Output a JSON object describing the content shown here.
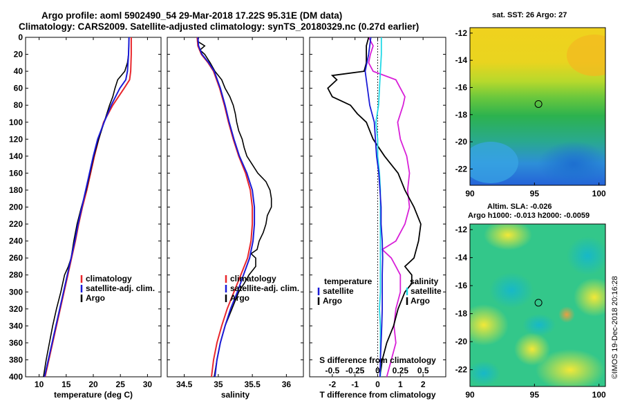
{
  "header": {
    "title_line1": "Argo profile: aoml 5902490_54 29-Mar-2018 17.22S 95.31E (DM data)",
    "title_line2": "Climatology: CARS2009. Satellite-adjusted climatology: synTS_20180329.nc (0.27d earlier)"
  },
  "colors": {
    "climatology": "#e8262c",
    "satellite": "#1a1ad6",
    "argo": "#000000",
    "salinity_diff": "#d81fd8",
    "salinity_sat": "#1fd8e6"
  },
  "chart_data": [
    {
      "type": "line",
      "name": "temperature",
      "xlabel": "temperature (deg C)",
      "ylim": [
        400,
        0
      ],
      "xlim": [
        7.5,
        32.5
      ],
      "xticks": [
        "10",
        "15",
        "20",
        "25",
        "30"
      ],
      "yticks": [
        "0",
        "20",
        "40",
        "60",
        "80",
        "100",
        "120",
        "140",
        "160",
        "180",
        "200",
        "220",
        "240",
        "260",
        "280",
        "300",
        "320",
        "340",
        "360",
        "380",
        "400"
      ],
      "legend": [
        "climatology",
        "satellite-adj. clim.",
        "Argo"
      ],
      "series": [
        {
          "name": "climatology",
          "depth": [
            0,
            20,
            40,
            50,
            60,
            80,
            100,
            120,
            140,
            160,
            180,
            200,
            220,
            240,
            260,
            280,
            300,
            320,
            340,
            360,
            380,
            400
          ],
          "values": [
            27.0,
            27.0,
            26.9,
            26.7,
            25.7,
            23.6,
            21.9,
            21.0,
            20.2,
            19.5,
            18.8,
            18.0,
            17.3,
            16.7,
            16.0,
            15.3,
            14.6,
            13.9,
            13.2,
            12.5,
            11.8,
            11.1
          ]
        },
        {
          "name": "satellite-adj. clim.",
          "depth": [
            0,
            20,
            40,
            50,
            60,
            80,
            100,
            120,
            140,
            160,
            180,
            200,
            220,
            240,
            260,
            280,
            300,
            320,
            340,
            360,
            380,
            400
          ],
          "values": [
            26.6,
            26.5,
            26.3,
            26.0,
            24.9,
            23.3,
            22.0,
            20.8,
            20.0,
            19.3,
            18.6,
            17.9,
            17.2,
            16.6,
            15.9,
            15.2,
            14.5,
            13.8,
            13.1,
            12.4,
            11.7,
            11.0
          ]
        },
        {
          "name": "Argo",
          "depth": [
            0,
            20,
            30,
            40,
            50,
            60,
            70,
            80,
            100,
            120,
            140,
            160,
            180,
            200,
            220,
            240,
            260,
            270,
            280,
            300,
            320,
            340,
            360,
            380,
            400
          ],
          "values": [
            26.6,
            26.5,
            26.3,
            25.8,
            24.5,
            24.0,
            23.6,
            23.0,
            22.0,
            21.0,
            20.1,
            19.4,
            18.7,
            17.8,
            17.0,
            16.4,
            15.9,
            15.4,
            14.7,
            14.0,
            13.2,
            12.5,
            11.9,
            11.3,
            10.8
          ]
        }
      ]
    },
    {
      "type": "line",
      "name": "salinity",
      "xlabel": "salinity",
      "ylim": [
        400,
        0
      ],
      "xlim": [
        34.25,
        36.25
      ],
      "xticks": [
        "34.5",
        "35",
        "35.5",
        "36"
      ],
      "legend": [
        "climatology",
        "satellite-adj. clim.",
        "Argo"
      ],
      "series": [
        {
          "name": "climatology",
          "depth": [
            0,
            10,
            20,
            30,
            40,
            60,
            80,
            100,
            120,
            140,
            160,
            180,
            200,
            220,
            240,
            260,
            280,
            300,
            320,
            340,
            360,
            380,
            400
          ],
          "values": [
            34.69,
            34.7,
            34.75,
            34.85,
            34.93,
            35.02,
            35.09,
            35.15,
            35.22,
            35.3,
            35.4,
            35.47,
            35.5,
            35.5,
            35.48,
            35.43,
            35.33,
            35.23,
            35.13,
            35.05,
            34.98,
            34.93,
            34.9
          ]
        },
        {
          "name": "satellite-adj. clim.",
          "depth": [
            0,
            10,
            20,
            30,
            40,
            60,
            80,
            100,
            120,
            140,
            160,
            180,
            200,
            220,
            240,
            260,
            280,
            300,
            320,
            340,
            360,
            380,
            400
          ],
          "values": [
            34.7,
            34.71,
            34.76,
            34.86,
            34.94,
            35.03,
            35.1,
            35.16,
            35.23,
            35.31,
            35.42,
            35.5,
            35.53,
            35.53,
            35.51,
            35.46,
            35.37,
            35.28,
            35.18,
            35.1,
            35.03,
            34.98,
            34.95
          ]
        },
        {
          "name": "Argo",
          "depth": [
            0,
            5,
            10,
            15,
            20,
            30,
            40,
            50,
            60,
            70,
            80,
            90,
            100,
            110,
            120,
            130,
            140,
            150,
            160,
            170,
            180,
            190,
            200,
            210,
            220,
            230,
            240,
            250,
            255,
            260,
            270,
            280,
            290,
            300,
            320,
            340,
            360,
            380,
            400
          ],
          "values": [
            34.71,
            34.7,
            34.8,
            34.73,
            34.8,
            34.88,
            34.95,
            35.05,
            35.1,
            35.17,
            35.22,
            35.25,
            35.27,
            35.3,
            35.35,
            35.38,
            35.42,
            35.5,
            35.58,
            35.7,
            35.76,
            35.78,
            35.78,
            35.72,
            35.7,
            35.66,
            35.6,
            35.57,
            35.48,
            35.55,
            35.55,
            35.45,
            35.38,
            35.3,
            35.2,
            35.1,
            35.03,
            34.98,
            34.94
          ]
        }
      ]
    },
    {
      "type": "line",
      "name": "difference",
      "xlabel": "T difference from climatology",
      "xlabel_top": "S difference from climatology",
      "ylim": [
        400,
        0
      ],
      "xlim": [
        -3,
        3
      ],
      "xticks": [
        "-2",
        "-1",
        "0",
        "1",
        "2"
      ],
      "xticks_top": [
        "-0.5",
        "-0.25",
        "0",
        "0.25",
        "0.5"
      ],
      "legend_temperature_title": "temperature",
      "legend_salinity_title": "salinity",
      "legend": [
        "satellite",
        "Argo"
      ],
      "series": [
        {
          "name": "T satellite",
          "depth": [
            0,
            20,
            40,
            60,
            80,
            100,
            120,
            140,
            160,
            180,
            200,
            220,
            240,
            260,
            280,
            300,
            320,
            340,
            360,
            380,
            400
          ],
          "values": [
            -0.3,
            -0.4,
            -0.55,
            -0.45,
            -0.35,
            -0.15,
            -0.1,
            -0.05,
            0.05,
            0.1,
            0.15,
            0.15,
            0.2,
            0.22,
            0.2,
            0.2,
            0.2,
            0.18,
            0.15,
            0.12,
            0.1
          ]
        },
        {
          "name": "T Argo",
          "depth": [
            0,
            10,
            20,
            30,
            40,
            45,
            50,
            60,
            70,
            75,
            80,
            90,
            100,
            120,
            140,
            160,
            180,
            200,
            220,
            240,
            260,
            270,
            280,
            290,
            300,
            320,
            340,
            360,
            380,
            400
          ],
          "values": [
            -0.4,
            -0.5,
            -0.5,
            -0.5,
            -0.6,
            -2.0,
            -1.8,
            -2.2,
            -2.0,
            -1.6,
            -1.2,
            -0.9,
            -0.5,
            -0.2,
            0.3,
            0.9,
            1.2,
            1.6,
            1.9,
            1.8,
            1.6,
            1.2,
            1.5,
            1.5,
            1.2,
            0.9,
            0.7,
            0.4,
            0.2,
            0.1
          ]
        },
        {
          "name": "S satellite",
          "depth": [
            0,
            20,
            40,
            60,
            80,
            100,
            120,
            140,
            160,
            180,
            200,
            220,
            240,
            260,
            280,
            300,
            320,
            340,
            360,
            380,
            400
          ],
          "values": [
            0.04,
            0.04,
            0.03,
            0.02,
            0.01,
            -0.02,
            0.0,
            0.0,
            0.02,
            0.03,
            0.03,
            0.03,
            0.03,
            0.03,
            0.03,
            0.03,
            0.02,
            0.03,
            0.03,
            0.03,
            0.03
          ]
        },
        {
          "name": "S Argo",
          "depth": [
            0,
            10,
            20,
            30,
            40,
            50,
            60,
            70,
            80,
            100,
            120,
            140,
            160,
            180,
            200,
            220,
            240,
            250,
            260,
            270,
            280,
            300,
            320,
            340,
            360,
            380,
            400
          ],
          "values": [
            -0.1,
            -0.05,
            -0.08,
            -0.1,
            -0.05,
            0.2,
            0.25,
            0.3,
            0.28,
            0.22,
            0.25,
            0.32,
            0.35,
            0.33,
            0.35,
            0.3,
            0.2,
            0.05,
            0.15,
            0.2,
            0.25,
            0.25,
            0.2,
            0.18,
            0.2,
            0.15,
            0.1
          ]
        }
      ]
    },
    {
      "type": "heatmap",
      "name": "sst-map",
      "title": "sat. SST: 26 Argo: 27",
      "xlim": [
        90,
        100.5
      ],
      "ylim": [
        -23.2,
        -11.6
      ],
      "xticks": [
        "90",
        "95",
        "100"
      ],
      "yticks": [
        "-12",
        "-14",
        "-16",
        "-18",
        "-20",
        "-22"
      ],
      "marker": {
        "lon": 95.31,
        "lat": -17.22
      }
    },
    {
      "type": "heatmap",
      "name": "sla-map",
      "title_line1": "Altim. SLA: -0.026",
      "title_line2": "Argo h1000: -0.013 h2000: -0.0059",
      "xlim": [
        90,
        100.5
      ],
      "ylim": [
        -23.2,
        -11.6
      ],
      "xticks": [
        "90",
        "95",
        "100"
      ],
      "yticks": [
        "-12",
        "-14",
        "-16",
        "-18",
        "-20",
        "-22"
      ],
      "marker": {
        "lon": 95.31,
        "lat": -17.22
      }
    }
  ],
  "footer": {
    "credit": "©IMOS 19-Dec-2018 20:16:28"
  }
}
